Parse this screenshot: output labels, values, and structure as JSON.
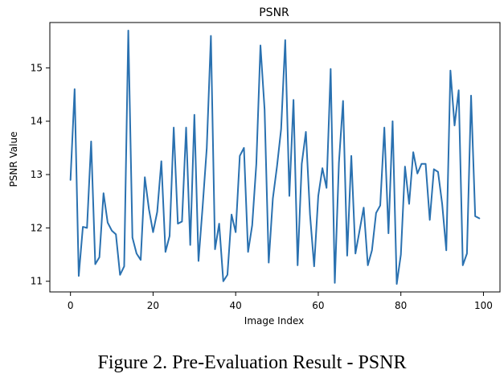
{
  "chart_data": {
    "type": "line",
    "title": "PSNR",
    "xlabel": "Image Index",
    "ylabel": "PSNR Value",
    "xlim": [
      -5,
      104
    ],
    "ylim": [
      10.8,
      15.85
    ],
    "xticks": [
      0,
      20,
      40,
      60,
      80,
      100
    ],
    "yticks": [
      11,
      12,
      13,
      14,
      15
    ],
    "grid": false,
    "series": [
      {
        "name": "PSNR",
        "color": "#2a71b0",
        "x": [
          0,
          1,
          2,
          3,
          4,
          5,
          6,
          7,
          8,
          9,
          10,
          11,
          12,
          13,
          14,
          15,
          16,
          17,
          18,
          19,
          20,
          21,
          22,
          23,
          24,
          25,
          26,
          27,
          28,
          29,
          30,
          31,
          32,
          33,
          34,
          35,
          36,
          37,
          38,
          39,
          40,
          41,
          42,
          43,
          44,
          45,
          46,
          47,
          48,
          49,
          50,
          51,
          52,
          53,
          54,
          55,
          56,
          57,
          58,
          59,
          60,
          61,
          62,
          63,
          64,
          65,
          66,
          67,
          68,
          69,
          70,
          71,
          72,
          73,
          74,
          75,
          76,
          77,
          78,
          79,
          80,
          81,
          82,
          83,
          84,
          85,
          86,
          87,
          88,
          89,
          90,
          91,
          92,
          93,
          94,
          95,
          96,
          97,
          98,
          99
        ],
        "values": [
          12.9,
          14.6,
          11.1,
          12.02,
          12.0,
          13.62,
          11.32,
          11.45,
          12.65,
          12.1,
          11.95,
          11.88,
          11.12,
          11.28,
          15.7,
          11.82,
          11.52,
          11.4,
          12.95,
          12.35,
          11.92,
          12.3,
          13.25,
          11.55,
          11.85,
          13.88,
          12.08,
          12.12,
          13.88,
          11.68,
          14.12,
          11.38,
          12.4,
          13.5,
          15.6,
          11.6,
          12.08,
          11.0,
          11.12,
          12.25,
          11.92,
          13.35,
          13.5,
          11.55,
          12.05,
          13.2,
          15.42,
          14.22,
          11.35,
          12.55,
          13.15,
          13.85,
          15.52,
          12.6,
          14.4,
          11.3,
          13.2,
          13.8,
          12.25,
          11.28,
          12.6,
          13.12,
          12.75,
          14.98,
          10.97,
          13.22,
          14.38,
          11.48,
          13.35,
          11.52,
          11.95,
          12.38,
          11.3,
          11.58,
          12.28,
          12.42,
          13.88,
          11.9,
          14.0,
          10.95,
          11.5,
          13.15,
          12.45,
          13.42,
          13.02,
          13.2,
          13.2,
          12.15,
          13.1,
          13.05,
          12.45,
          11.58,
          14.95,
          13.92,
          14.58,
          11.3,
          11.52,
          14.48,
          12.22,
          12.18
        ]
      }
    ]
  },
  "caption": "Figure 2. Pre-Evaluation Result - PSNR"
}
